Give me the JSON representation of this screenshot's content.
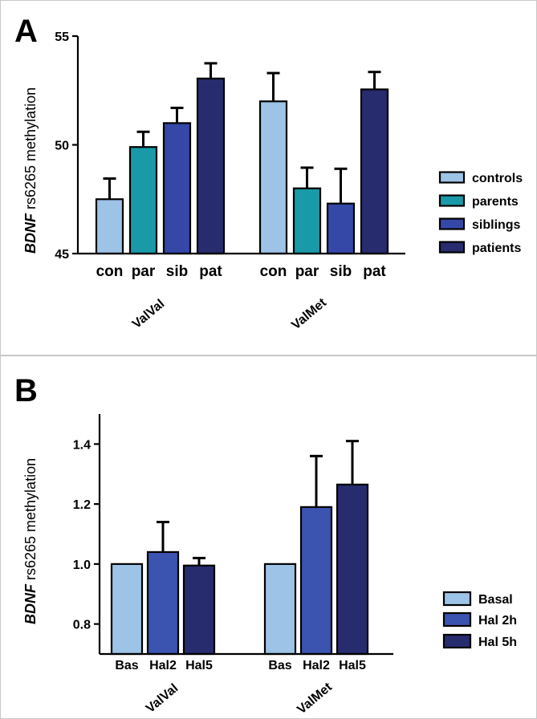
{
  "chart_data": [
    {
      "panel": "A",
      "type": "bar",
      "ylabel_italic": "BDNF",
      "ylabel_rest": " rs6265 methylation",
      "ylim": [
        45,
        55
      ],
      "yticks": [
        "45",
        "50",
        "55"
      ],
      "ytick_values": [
        45,
        50,
        55
      ],
      "groups": [
        "ValVal",
        "ValMet"
      ],
      "category_labels": [
        "con",
        "par",
        "sib",
        "pat"
      ],
      "series": [
        {
          "name": "controls",
          "color": "#9dc3e6",
          "values": [
            47.5,
            52.0
          ],
          "errors": [
            0.95,
            1.3
          ]
        },
        {
          "name": "parents",
          "color": "#1a9aa8",
          "values": [
            49.9,
            48.0
          ],
          "errors": [
            0.7,
            0.95
          ]
        },
        {
          "name": "siblings",
          "color": "#3548a8",
          "values": [
            51.0,
            47.3
          ],
          "errors": [
            0.7,
            1.6
          ]
        },
        {
          "name": "patients",
          "color": "#272c6e",
          "values": [
            53.05,
            52.55
          ],
          "errors": [
            0.7,
            0.8
          ]
        }
      ],
      "legend_position": "right"
    },
    {
      "panel": "B",
      "type": "bar",
      "ylabel_italic": "BDNF",
      "ylabel_rest": " rs6265 methylation",
      "ylim": [
        0.7,
        1.5
      ],
      "yticks": [
        "0.8",
        "1.0",
        "1.2",
        "1.4"
      ],
      "ytick_values": [
        0.8,
        1.0,
        1.2,
        1.4
      ],
      "groups": [
        "ValVal",
        "ValMet"
      ],
      "category_labels": [
        "Bas",
        "Hal2",
        "Hal5"
      ],
      "series": [
        {
          "name": "Basal",
          "color": "#9dc3e6",
          "values": [
            1.0,
            1.0
          ],
          "errors": [
            0.0,
            0.0
          ]
        },
        {
          "name": "Hal 2h",
          "color": "#3a54b0",
          "values": [
            1.04,
            1.19
          ],
          "errors": [
            0.1,
            0.17
          ]
        },
        {
          "name": "Hal 5h",
          "color": "#272c6e",
          "values": [
            0.995,
            1.265
          ],
          "errors": [
            0.025,
            0.145
          ]
        }
      ],
      "legend_position": "right"
    }
  ]
}
